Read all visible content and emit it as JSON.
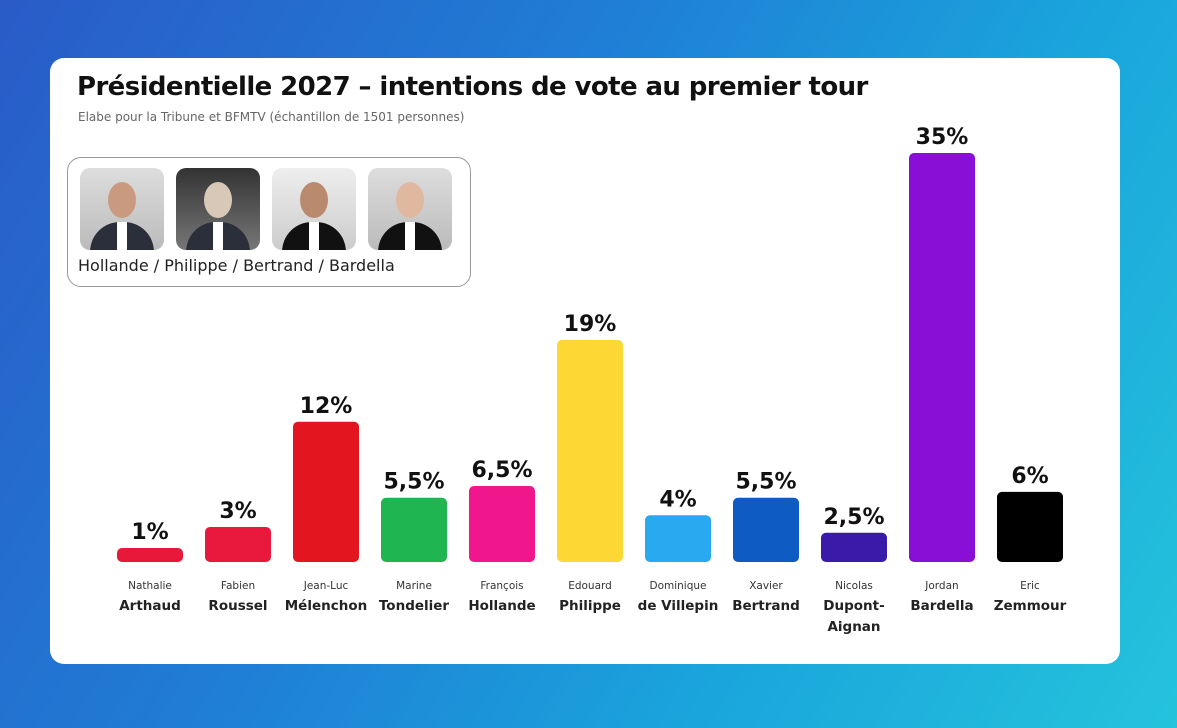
{
  "chart_data": {
    "type": "bar",
    "title": "Présidentielle 2027 – intentions de vote au premier tour",
    "subtitle": "Elabe pour la Tribune et  BFMTV (échantillon de 1501 personnes)",
    "scenario_label": "Hollande / Philippe / Bertrand / Bardella",
    "categories": [
      {
        "first": "Nathalie",
        "last": "Arthaud"
      },
      {
        "first": "Fabien",
        "last": "Roussel"
      },
      {
        "first": "Jean-Luc",
        "last": "Mélenchon"
      },
      {
        "first": "Marine",
        "last": "Tondelier"
      },
      {
        "first": "François",
        "last": "Hollande"
      },
      {
        "first": "Edouard",
        "last": "Philippe"
      },
      {
        "first": "Dominique",
        "last": "de Villepin"
      },
      {
        "first": "Xavier",
        "last": "Bertrand"
      },
      {
        "first": "Nicolas",
        "last": "Dupont-Aignan"
      },
      {
        "first": "Jordan",
        "last": "Bardella"
      },
      {
        "first": "Eric",
        "last": "Zemmour"
      }
    ],
    "values": [
      1,
      3,
      12,
      5.5,
      6.5,
      19,
      4,
      5.5,
      2.5,
      35,
      6
    ],
    "value_labels": [
      "1%",
      "3%",
      "12%",
      "5,5%",
      "6,5%",
      "19%",
      "4%",
      "5,5%",
      "2,5%",
      "35%",
      "6%"
    ],
    "colors": [
      "#e8183a",
      "#e8193c",
      "#e3161f",
      "#1fb550",
      "#f0168c",
      "#fdd835",
      "#29a9f0",
      "#0e5bc4",
      "#3a1aa8",
      "#8a0fd6",
      "#000000"
    ],
    "ylim": [
      0,
      35
    ],
    "grid": false,
    "legend": "none"
  }
}
